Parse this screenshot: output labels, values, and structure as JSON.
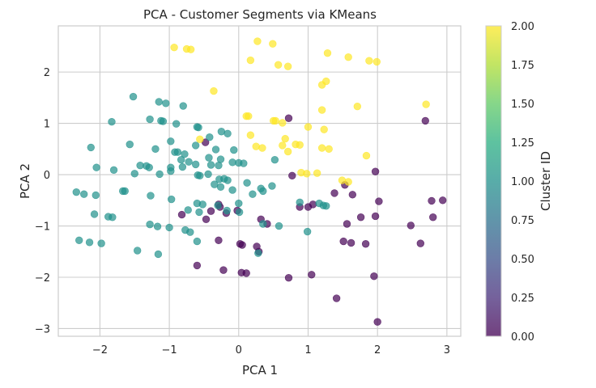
{
  "chart_data": {
    "type": "scatter",
    "title": "PCA - Customer Segments via KMeans",
    "xlabel": "PCA 1",
    "ylabel": "PCA 2",
    "xlim": [
      -2.6,
      3.2
    ],
    "ylim": [
      -3.15,
      2.9
    ],
    "xticks": [
      -2,
      -1,
      0,
      1,
      2,
      3
    ],
    "xtick_labels": [
      "−2",
      "−1",
      "0",
      "1",
      "2",
      "3"
    ],
    "yticks": [
      -3,
      -2,
      -1,
      0,
      1,
      2
    ],
    "ytick_labels": [
      "−3",
      "−2",
      "−1",
      "0",
      "1",
      "2"
    ],
    "grid": true,
    "colorbar": {
      "label": "Cluster ID",
      "min": 0.0,
      "max": 2.0,
      "ticks": [
        0.0,
        0.25,
        0.5,
        0.75,
        1.0,
        1.25,
        1.5,
        1.75,
        2.0
      ],
      "tick_labels": [
        "0.00",
        "0.25",
        "0.50",
        "0.75",
        "1.00",
        "1.25",
        "1.50",
        "1.75",
        "2.00"
      ],
      "colors": [
        "#440154",
        "#21918c",
        "#fde725"
      ]
    },
    "series": [
      {
        "cluster": 0,
        "color": "#440154",
        "points": [
          [
            0.72,
            1.1
          ],
          [
            2.69,
            1.05
          ],
          [
            1.97,
            0.06
          ],
          [
            -0.48,
            0.63
          ],
          [
            0.77,
            -0.02
          ],
          [
            1.53,
            -0.2
          ],
          [
            1.38,
            -0.36
          ],
          [
            1.64,
            -0.39
          ],
          [
            2.02,
            -0.52
          ],
          [
            2.78,
            -0.51
          ],
          [
            2.94,
            -0.5
          ],
          [
            0.88,
            -0.63
          ],
          [
            1.07,
            -0.58
          ],
          [
            1.0,
            -0.63
          ],
          [
            -0.29,
            -0.58
          ],
          [
            -0.18,
            -0.75
          ],
          [
            -0.27,
            -0.63
          ],
          [
            -0.4,
            -0.71
          ],
          [
            -0.47,
            -0.87
          ],
          [
            -0.82,
            -0.78
          ],
          [
            -0.02,
            -0.7
          ],
          [
            0.32,
            -0.87
          ],
          [
            0.41,
            -0.96
          ],
          [
            1.56,
            -0.96
          ],
          [
            1.76,
            -0.83
          ],
          [
            1.97,
            -0.81
          ],
          [
            2.8,
            -0.83
          ],
          [
            2.48,
            -0.99
          ],
          [
            -0.29,
            -1.28
          ],
          [
            0.02,
            -1.35
          ],
          [
            0.05,
            -1.37
          ],
          [
            0.26,
            -1.4
          ],
          [
            0.29,
            -1.5
          ],
          [
            1.51,
            -1.3
          ],
          [
            1.62,
            -1.33
          ],
          [
            1.83,
            -1.35
          ],
          [
            2.62,
            -1.34
          ],
          [
            -0.6,
            -1.77
          ],
          [
            -0.22,
            -1.86
          ],
          [
            0.04,
            -1.91
          ],
          [
            0.11,
            -1.92
          ],
          [
            0.72,
            -2.01
          ],
          [
            1.05,
            -1.95
          ],
          [
            1.95,
            -1.98
          ],
          [
            1.41,
            -2.41
          ],
          [
            2.0,
            -2.87
          ]
        ]
      },
      {
        "cluster": 1,
        "color": "#21918c",
        "points": [
          [
            -1.52,
            1.52
          ],
          [
            -1.15,
            1.42
          ],
          [
            -1.05,
            1.39
          ],
          [
            -0.8,
            1.34
          ],
          [
            -1.28,
            1.08
          ],
          [
            -1.12,
            1.05
          ],
          [
            -1.09,
            1.04
          ],
          [
            -0.9,
            0.99
          ],
          [
            -1.83,
            1.03
          ],
          [
            -0.6,
            0.93
          ],
          [
            -0.58,
            0.92
          ],
          [
            -0.25,
            0.84
          ],
          [
            -0.16,
            0.8
          ],
          [
            -0.42,
            0.73
          ],
          [
            -0.98,
            0.65
          ],
          [
            -0.62,
            0.57
          ],
          [
            -1.57,
            0.59
          ],
          [
            -1.2,
            0.5
          ],
          [
            -0.33,
            0.49
          ],
          [
            -0.07,
            0.48
          ],
          [
            -2.13,
            0.53
          ],
          [
            -0.88,
            0.44
          ],
          [
            -0.92,
            0.44
          ],
          [
            -0.78,
            0.4
          ],
          [
            -0.43,
            0.33
          ],
          [
            -0.26,
            0.3
          ],
          [
            -0.83,
            0.29
          ],
          [
            -0.72,
            0.25
          ],
          [
            -1.42,
            0.18
          ],
          [
            -1.33,
            0.17
          ],
          [
            -1.29,
            0.14
          ],
          [
            -0.98,
            0.14
          ],
          [
            -0.81,
            0.15
          ],
          [
            -0.62,
            0.2
          ],
          [
            -0.4,
            0.19
          ],
          [
            -0.29,
            0.18
          ],
          [
            -0.09,
            0.24
          ],
          [
            0.0,
            0.23
          ],
          [
            0.07,
            0.22
          ],
          [
            -2.05,
            0.14
          ],
          [
            -1.8,
            0.09
          ],
          [
            -0.98,
            0.07
          ],
          [
            -0.59,
            -0.01
          ],
          [
            -0.56,
            -0.02
          ],
          [
            -1.5,
            0.02
          ],
          [
            -1.14,
            0.01
          ],
          [
            -0.44,
            0.01
          ],
          [
            -0.28,
            -0.09
          ],
          [
            -0.21,
            -0.08
          ],
          [
            -0.16,
            -0.11
          ],
          [
            -0.35,
            -0.19
          ],
          [
            -0.26,
            -0.24
          ],
          [
            -0.09,
            -0.3
          ],
          [
            0.12,
            -0.16
          ],
          [
            0.2,
            -0.38
          ],
          [
            0.32,
            -0.27
          ],
          [
            0.35,
            -0.32
          ],
          [
            0.48,
            -0.22
          ],
          [
            0.52,
            0.29
          ],
          [
            0.0,
            -0.56
          ],
          [
            -1.67,
            -0.32
          ],
          [
            -1.64,
            -0.32
          ],
          [
            -2.34,
            -0.34
          ],
          [
            -2.23,
            -0.38
          ],
          [
            -2.06,
            -0.4
          ],
          [
            -1.27,
            -0.41
          ],
          [
            -0.97,
            -0.48
          ],
          [
            -0.6,
            -0.56
          ],
          [
            -0.52,
            -0.58
          ],
          [
            -0.73,
            -0.69
          ],
          [
            -0.57,
            -0.73
          ],
          [
            -0.3,
            -0.6
          ],
          [
            -0.17,
            -0.7
          ],
          [
            0.01,
            -0.73
          ],
          [
            0.35,
            -0.96
          ],
          [
            0.88,
            -0.54
          ],
          [
            1.16,
            -0.56
          ],
          [
            1.22,
            -0.6
          ],
          [
            1.26,
            -0.61
          ],
          [
            0.58,
            -1.0
          ],
          [
            -1.28,
            -0.97
          ],
          [
            -1.17,
            -1.01
          ],
          [
            -1.0,
            -1.03
          ],
          [
            -0.77,
            -1.08
          ],
          [
            -0.7,
            -1.12
          ],
          [
            -0.6,
            -1.3
          ],
          [
            -2.08,
            -0.77
          ],
          [
            -1.88,
            -0.82
          ],
          [
            -1.82,
            -0.83
          ],
          [
            0.99,
            -1.11
          ],
          [
            -2.3,
            -1.28
          ],
          [
            -2.15,
            -1.32
          ],
          [
            -1.98,
            -1.34
          ],
          [
            -1.46,
            -1.48
          ],
          [
            -1.16,
            -1.55
          ],
          [
            0.28,
            -1.53
          ]
        ]
      },
      {
        "cluster": 2,
        "color": "#fde725",
        "points": [
          [
            -0.93,
            2.48
          ],
          [
            -0.75,
            2.45
          ],
          [
            -0.69,
            2.44
          ],
          [
            0.27,
            2.6
          ],
          [
            0.49,
            2.55
          ],
          [
            1.28,
            2.37
          ],
          [
            1.58,
            2.29
          ],
          [
            1.88,
            2.22
          ],
          [
            1.99,
            2.2
          ],
          [
            0.17,
            2.23
          ],
          [
            0.57,
            2.14
          ],
          [
            0.71,
            2.11
          ],
          [
            1.2,
            1.75
          ],
          [
            1.26,
            1.82
          ],
          [
            -0.36,
            1.63
          ],
          [
            1.71,
            1.33
          ],
          [
            2.7,
            1.37
          ],
          [
            1.2,
            1.26
          ],
          [
            0.11,
            1.14
          ],
          [
            0.14,
            1.14
          ],
          [
            0.5,
            1.05
          ],
          [
            0.53,
            1.05
          ],
          [
            0.63,
            1.01
          ],
          [
            1.0,
            0.93
          ],
          [
            1.23,
            0.88
          ],
          [
            0.17,
            0.77
          ],
          [
            -0.56,
            0.69
          ],
          [
            0.63,
            0.57
          ],
          [
            0.67,
            0.7
          ],
          [
            0.25,
            0.55
          ],
          [
            0.34,
            0.52
          ],
          [
            0.82,
            0.59
          ],
          [
            0.88,
            0.58
          ],
          [
            0.71,
            0.45
          ],
          [
            1.2,
            0.52
          ],
          [
            1.3,
            0.5
          ],
          [
            1.84,
            0.37
          ],
          [
            0.9,
            0.04
          ],
          [
            0.98,
            0.02
          ],
          [
            1.13,
            0.03
          ],
          [
            1.49,
            -0.11
          ],
          [
            1.58,
            -0.14
          ]
        ]
      }
    ]
  }
}
